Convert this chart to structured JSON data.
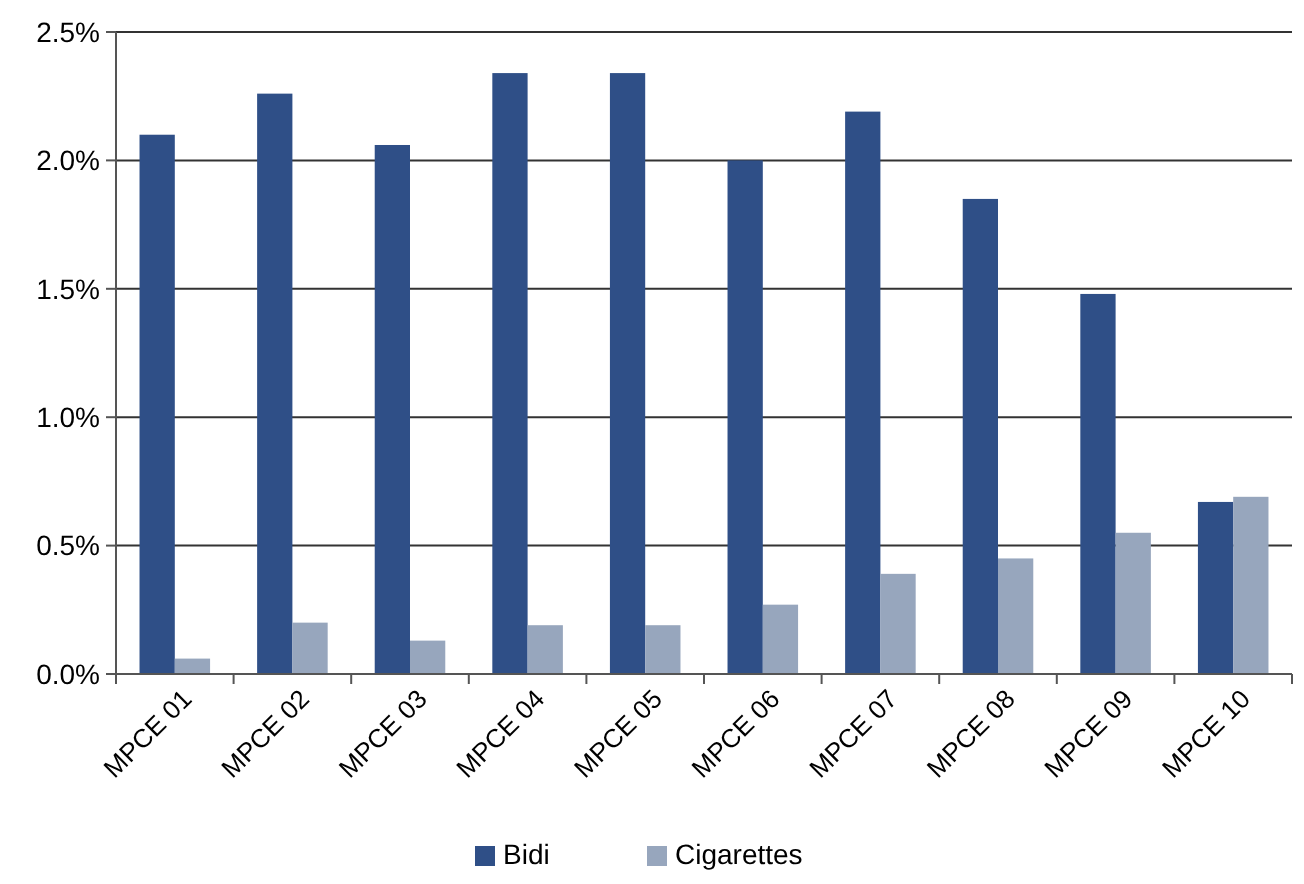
{
  "chart_data": {
    "type": "bar",
    "categories": [
      "MPCE 01",
      "MPCE 02",
      "MPCE 03",
      "MPCE 04",
      "MPCE 05",
      "MPCE 06",
      "MPCE 07",
      "MPCE 08",
      "MPCE 09",
      "MPCE 10"
    ],
    "series": [
      {
        "name": "Bidi",
        "color": "#2f4f87",
        "values": [
          2.1,
          2.26,
          2.06,
          2.34,
          2.34,
          2.0,
          2.19,
          1.85,
          1.48,
          0.67
        ]
      },
      {
        "name": "Cigarettes",
        "color": "#97a6bd",
        "values": [
          0.06,
          0.2,
          0.13,
          0.19,
          0.19,
          0.27,
          0.39,
          0.45,
          0.55,
          0.69
        ]
      }
    ],
    "ylim": [
      0,
      2.5
    ],
    "yticks": [
      {
        "value": 0,
        "label": "0.0%"
      },
      {
        "value": 0.5,
        "label": "0.5%"
      },
      {
        "value": 1,
        "label": "1.0%"
      },
      {
        "value": 1.5,
        "label": "1.5%"
      },
      {
        "value": 2,
        "label": "2.0%"
      },
      {
        "value": 2.5,
        "label": "2.5%"
      }
    ],
    "grid": "y",
    "legend": "bottom"
  }
}
